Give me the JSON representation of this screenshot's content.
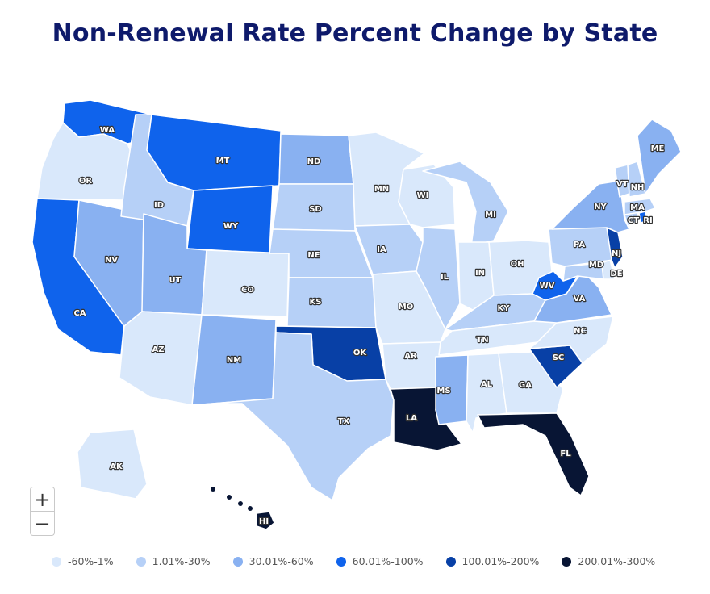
{
  "title": "Non-Renewal Rate Percent Change by State",
  "zoom": {
    "in_label": "+",
    "out_label": "−"
  },
  "legend": [
    {
      "label": "-60%-1%",
      "color": "#d9e8fb"
    },
    {
      "label": "1.01%-30%",
      "color": "#b6d0f7"
    },
    {
      "label": "30.01%-60%",
      "color": "#89b1f1"
    },
    {
      "label": "60.01%-100%",
      "color": "#0f63ec"
    },
    {
      "label": "100.01%-200%",
      "color": "#0840a6"
    },
    {
      "label": "200.01%-300%",
      "color": "#081534"
    }
  ],
  "states": [
    {
      "abbr": "WA",
      "tier": 3
    },
    {
      "abbr": "OR",
      "tier": 0
    },
    {
      "abbr": "CA",
      "tier": 3
    },
    {
      "abbr": "NV",
      "tier": 2
    },
    {
      "abbr": "ID",
      "tier": 1
    },
    {
      "abbr": "MT",
      "tier": 3
    },
    {
      "abbr": "WY",
      "tier": 3
    },
    {
      "abbr": "UT",
      "tier": 2
    },
    {
      "abbr": "AZ",
      "tier": 0
    },
    {
      "abbr": "CO",
      "tier": 0
    },
    {
      "abbr": "NM",
      "tier": 2
    },
    {
      "abbr": "ND",
      "tier": 2
    },
    {
      "abbr": "SD",
      "tier": 1
    },
    {
      "abbr": "NE",
      "tier": 1
    },
    {
      "abbr": "KS",
      "tier": 1
    },
    {
      "abbr": "OK",
      "tier": 4
    },
    {
      "abbr": "TX",
      "tier": 1
    },
    {
      "abbr": "MN",
      "tier": 0
    },
    {
      "abbr": "IA",
      "tier": 1
    },
    {
      "abbr": "MO",
      "tier": 0
    },
    {
      "abbr": "AR",
      "tier": 0
    },
    {
      "abbr": "LA",
      "tier": 5
    },
    {
      "abbr": "WI",
      "tier": 0
    },
    {
      "abbr": "IL",
      "tier": 1
    },
    {
      "abbr": "MI",
      "tier": 1
    },
    {
      "abbr": "IN",
      "tier": 0
    },
    {
      "abbr": "OH",
      "tier": 0
    },
    {
      "abbr": "KY",
      "tier": 1
    },
    {
      "abbr": "TN",
      "tier": 0
    },
    {
      "abbr": "MS",
      "tier": 2
    },
    {
      "abbr": "AL",
      "tier": 0
    },
    {
      "abbr": "GA",
      "tier": 0
    },
    {
      "abbr": "FL",
      "tier": 5
    },
    {
      "abbr": "SC",
      "tier": 4
    },
    {
      "abbr": "NC",
      "tier": 0
    },
    {
      "abbr": "VA",
      "tier": 2
    },
    {
      "abbr": "WV",
      "tier": 3
    },
    {
      "abbr": "MD",
      "tier": 1
    },
    {
      "abbr": "DE",
      "tier": 0
    },
    {
      "abbr": "PA",
      "tier": 1
    },
    {
      "abbr": "NJ",
      "tier": 4
    },
    {
      "abbr": "NY",
      "tier": 2
    },
    {
      "abbr": "CT",
      "tier": 1
    },
    {
      "abbr": "RI",
      "tier": 3
    },
    {
      "abbr": "MA",
      "tier": 1
    },
    {
      "abbr": "VT",
      "tier": 1
    },
    {
      "abbr": "NH",
      "tier": 1
    },
    {
      "abbr": "ME",
      "tier": 2
    },
    {
      "abbr": "AK",
      "tier": 0
    },
    {
      "abbr": "HI",
      "tier": 5
    }
  ]
}
